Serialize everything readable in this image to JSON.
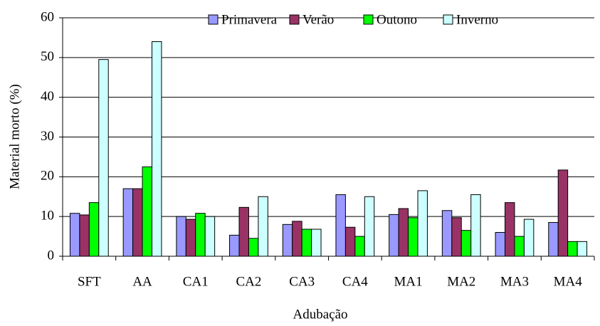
{
  "chart_data": {
    "type": "bar",
    "x_label": "Adubação",
    "y_label": "Material morto (%)",
    "categories": [
      "SFT",
      "AA",
      "CA1",
      "CA2",
      "CA3",
      "CA4",
      "MA1",
      "MA2",
      "MA3",
      "MA4"
    ],
    "series": [
      {
        "name": "Primavera",
        "color": "#9999ff",
        "values": [
          10.8,
          17,
          10,
          5.3,
          8,
          15.5,
          10.5,
          11.5,
          6,
          8.5
        ]
      },
      {
        "name": "Verão",
        "color": "#993366",
        "values": [
          10.4,
          17,
          9.3,
          12.3,
          8.8,
          7.3,
          12,
          9.7,
          13.5,
          21.7
        ]
      },
      {
        "name": "Outono",
        "color": "#00ff00",
        "values": [
          13.5,
          22.5,
          10.8,
          4.5,
          6.8,
          5,
          9.7,
          6.5,
          5,
          3.7
        ]
      },
      {
        "name": "Inverno",
        "color": "#ccffff",
        "values": [
          49.5,
          54,
          10,
          15,
          6.8,
          15,
          16.5,
          15.5,
          9.3,
          3.7
        ]
      }
    ],
    "ylim": [
      0,
      60
    ],
    "yticks": [
      0,
      10,
      20,
      30,
      40,
      50,
      60
    ],
    "grid": true
  }
}
